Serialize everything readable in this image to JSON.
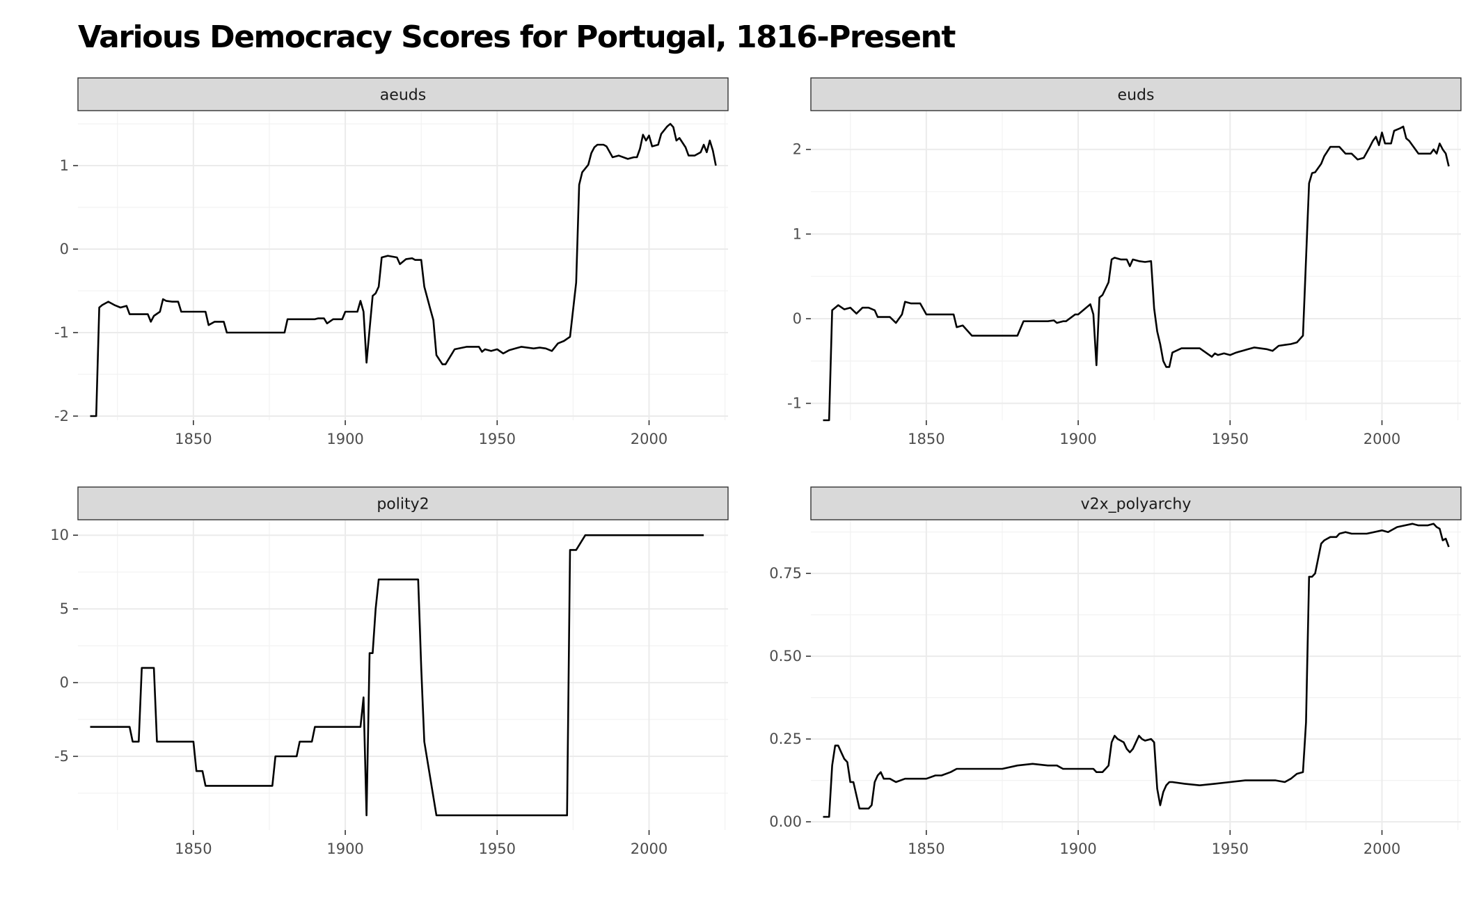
{
  "title": "Various Democracy Scores for Portugal, 1816-Present",
  "chart_data": [
    {
      "type": "line",
      "panel": "aeuds",
      "xlim": [
        1812,
        2026
      ],
      "ylim": [
        -2.05,
        1.65
      ],
      "x_ticks": [
        1850,
        1900,
        1950,
        2000
      ],
      "x_tick_labels": [
        "1850",
        "1900",
        "1950",
        "2000"
      ],
      "y_ticks": [
        -2,
        -1,
        0,
        1
      ],
      "y_tick_labels": [
        "-2",
        "-1",
        "0",
        "1"
      ],
      "grid": true,
      "series": [
        {
          "x": [
            1816,
            1818,
            1819,
            1820,
            1822,
            1824,
            1826,
            1828,
            1829,
            1831,
            1835,
            1836,
            1837,
            1839,
            1840,
            1841,
            1843,
            1845,
            1846,
            1848,
            1850,
            1853,
            1854,
            1855,
            1857,
            1858,
            1860,
            1861,
            1865,
            1870,
            1875,
            1880,
            1881,
            1885,
            1890,
            1891,
            1893,
            1894,
            1896,
            1899,
            1900,
            1904,
            1905,
            1906,
            1907,
            1909,
            1910,
            1911,
            1912,
            1914,
            1917,
            1918,
            1920,
            1922,
            1923,
            1924,
            1925,
            1926,
            1928,
            1929,
            1930,
            1932,
            1933,
            1936,
            1940,
            1944,
            1945,
            1946,
            1948,
            1950,
            1952,
            1954,
            1956,
            1958,
            1962,
            1964,
            1966,
            1968,
            1970,
            1972,
            1974,
            1976,
            1977,
            1978,
            1980,
            1981,
            1982,
            1983,
            1985,
            1986,
            1988,
            1990,
            1993,
            1995,
            1996,
            1997,
            1998,
            1999,
            2000,
            2001,
            2003,
            2004,
            2006,
            2007,
            2008,
            2009,
            2010,
            2012,
            2013,
            2015,
            2017,
            2018,
            2019,
            2020,
            2021,
            2022
          ],
          "y": [
            -2.0,
            -2.0,
            -0.7,
            -0.67,
            -0.63,
            -0.67,
            -0.7,
            -0.68,
            -0.78,
            -0.78,
            -0.78,
            -0.87,
            -0.8,
            -0.75,
            -0.6,
            -0.62,
            -0.63,
            -0.63,
            -0.75,
            -0.75,
            -0.75,
            -0.75,
            -0.75,
            -0.91,
            -0.87,
            -0.87,
            -0.87,
            -1.0,
            -1.0,
            -1.0,
            -1.0,
            -1.0,
            -0.84,
            -0.84,
            -0.84,
            -0.83,
            -0.83,
            -0.89,
            -0.84,
            -0.84,
            -0.75,
            -0.75,
            -0.62,
            -0.75,
            -1.36,
            -0.56,
            -0.53,
            -0.45,
            -0.1,
            -0.08,
            -0.1,
            -0.18,
            -0.12,
            -0.11,
            -0.13,
            -0.13,
            -0.13,
            -0.45,
            -0.72,
            -0.85,
            -1.27,
            -1.38,
            -1.38,
            -1.2,
            -1.17,
            -1.17,
            -1.23,
            -1.2,
            -1.22,
            -1.2,
            -1.25,
            -1.21,
            -1.19,
            -1.17,
            -1.19,
            -1.18,
            -1.19,
            -1.22,
            -1.13,
            -1.1,
            -1.05,
            -0.4,
            0.77,
            0.92,
            1.01,
            1.15,
            1.22,
            1.25,
            1.25,
            1.23,
            1.1,
            1.12,
            1.08,
            1.1,
            1.1,
            1.2,
            1.37,
            1.3,
            1.36,
            1.23,
            1.25,
            1.38,
            1.47,
            1.5,
            1.46,
            1.3,
            1.33,
            1.22,
            1.12,
            1.12,
            1.16,
            1.25,
            1.16,
            1.3,
            1.18,
            1.0
          ]
        }
      ]
    },
    {
      "type": "line",
      "panel": "euds",
      "xlim": [
        1812,
        2026
      ],
      "ylim": [
        -1.2,
        2.45
      ],
      "x_ticks": [
        1850,
        1900,
        1950,
        2000
      ],
      "x_tick_labels": [
        "1850",
        "1900",
        "1950",
        "2000"
      ],
      "y_ticks": [
        -1,
        0,
        1,
        2
      ],
      "y_tick_labels": [
        "-1",
        "0",
        "1",
        "2"
      ],
      "grid": true,
      "series": [
        {
          "x": [
            1816,
            1818,
            1819,
            1821,
            1823,
            1825,
            1827,
            1829,
            1831,
            1833,
            1834,
            1836,
            1838,
            1840,
            1842,
            1843,
            1845,
            1846,
            1848,
            1850,
            1853,
            1854,
            1856,
            1857,
            1859,
            1860,
            1862,
            1865,
            1870,
            1875,
            1880,
            1882,
            1885,
            1890,
            1892,
            1893,
            1895,
            1896,
            1899,
            1900,
            1904,
            1905,
            1906,
            1907,
            1908,
            1910,
            1911,
            1912,
            1914,
            1916,
            1917,
            1918,
            1920,
            1922,
            1924,
            1925,
            1926,
            1927,
            1928,
            1929,
            1930,
            1931,
            1934,
            1940,
            1944,
            1945,
            1946,
            1948,
            1950,
            1952,
            1954,
            1956,
            1958,
            1962,
            1964,
            1966,
            1968,
            1970,
            1972,
            1974,
            1976,
            1977,
            1978,
            1980,
            1981,
            1983,
            1986,
            1988,
            1990,
            1992,
            1994,
            1996,
            1997,
            1998,
            1999,
            2000,
            2001,
            2003,
            2004,
            2006,
            2007,
            2008,
            2009,
            2010,
            2012,
            2013,
            2016,
            2017,
            2018,
            2019,
            2020,
            2021,
            2022
          ],
          "y": [
            -1.2,
            -1.2,
            0.1,
            0.16,
            0.11,
            0.13,
            0.06,
            0.13,
            0.13,
            0.1,
            0.02,
            0.02,
            0.02,
            -0.05,
            0.05,
            0.2,
            0.18,
            0.18,
            0.18,
            0.05,
            0.05,
            0.05,
            0.05,
            0.05,
            0.05,
            -0.1,
            -0.08,
            -0.2,
            -0.2,
            -0.2,
            -0.2,
            -0.03,
            -0.03,
            -0.03,
            -0.02,
            -0.05,
            -0.03,
            -0.03,
            0.05,
            0.05,
            0.17,
            0.05,
            -0.55,
            0.25,
            0.28,
            0.43,
            0.7,
            0.72,
            0.7,
            0.7,
            0.62,
            0.7,
            0.68,
            0.67,
            0.68,
            0.12,
            -0.15,
            -0.3,
            -0.5,
            -0.57,
            -0.57,
            -0.4,
            -0.35,
            -0.35,
            -0.45,
            -0.41,
            -0.43,
            -0.41,
            -0.43,
            -0.4,
            -0.38,
            -0.36,
            -0.34,
            -0.36,
            -0.38,
            -0.32,
            -0.31,
            -0.3,
            -0.28,
            -0.2,
            1.6,
            1.72,
            1.73,
            1.83,
            1.92,
            2.03,
            2.03,
            1.95,
            1.95,
            1.88,
            1.9,
            2.03,
            2.1,
            2.15,
            2.05,
            2.2,
            2.07,
            2.07,
            2.22,
            2.25,
            2.27,
            2.13,
            2.1,
            2.05,
            1.95,
            1.95,
            1.95,
            2.0,
            1.95,
            2.07,
            2.0,
            1.95,
            1.8
          ]
        }
      ]
    },
    {
      "type": "line",
      "panel": "polity2",
      "xlim": [
        1812,
        2026
      ],
      "ylim": [
        -10,
        11
      ],
      "x_ticks": [
        1850,
        1900,
        1950,
        2000
      ],
      "x_tick_labels": [
        "1850",
        "1900",
        "1950",
        "2000"
      ],
      "y_ticks": [
        -5,
        0,
        5,
        10
      ],
      "y_tick_labels": [
        "-5",
        "0",
        "5",
        "10"
      ],
      "grid": true,
      "series": [
        {
          "x": [
            1816,
            1829,
            1830,
            1832,
            1833,
            1837,
            1838,
            1842,
            1843,
            1850,
            1851,
            1853,
            1854,
            1855,
            1858,
            1859,
            1860,
            1875,
            1876,
            1877,
            1878,
            1879,
            1880,
            1884,
            1885,
            1889,
            1890,
            1899,
            1900,
            1904,
            1905,
            1906,
            1907,
            1908,
            1909,
            1910,
            1911,
            1912,
            1924,
            1925,
            1926,
            1930,
            1931,
            1973,
            1974,
            1975,
            1976,
            1979,
            1980,
            2018
          ],
          "y": [
            -3,
            -3,
            -4,
            -4,
            1,
            1,
            -4,
            -4,
            -4,
            -4,
            -6,
            -6,
            -7,
            -7,
            -7,
            -7,
            -7,
            -7,
            -7,
            -5,
            -5,
            -5,
            -5,
            -5,
            -4,
            -4,
            -3,
            -3,
            -3,
            -3,
            -3,
            -1,
            -9,
            2,
            2,
            5,
            7,
            7,
            7,
            1,
            -4,
            -9,
            -9,
            -9,
            9,
            9,
            9,
            10,
            10,
            10
          ]
        }
      ]
    },
    {
      "type": "line",
      "panel": "v2x_polyarchy",
      "xlim": [
        1812,
        2026
      ],
      "ylim": [
        -0.025,
        0.91
      ],
      "x_ticks": [
        1850,
        1900,
        1950,
        2000
      ],
      "x_tick_labels": [
        "1850",
        "1900",
        "1950",
        "2000"
      ],
      "y_ticks": [
        0.0,
        0.25,
        0.5,
        0.75
      ],
      "y_tick_labels": [
        "0.00",
        "0.25",
        "0.50",
        "0.75"
      ],
      "grid": true,
      "series": [
        {
          "x": [
            1816,
            1818,
            1819,
            1820,
            1821,
            1822,
            1823,
            1824,
            1825,
            1826,
            1828,
            1831,
            1832,
            1833,
            1834,
            1835,
            1836,
            1838,
            1840,
            1843,
            1846,
            1850,
            1853,
            1855,
            1858,
            1860,
            1865,
            1870,
            1875,
            1880,
            1885,
            1890,
            1893,
            1895,
            1900,
            1905,
            1906,
            1908,
            1909,
            1910,
            1911,
            1912,
            1913,
            1914,
            1915,
            1916,
            1917,
            1918,
            1920,
            1921,
            1922,
            1924,
            1925,
            1926,
            1927,
            1928,
            1929,
            1930,
            1931,
            1935,
            1940,
            1945,
            1950,
            1955,
            1960,
            1965,
            1968,
            1970,
            1972,
            1974,
            1975,
            1976,
            1977,
            1978,
            1980,
            1981,
            1983,
            1985,
            1986,
            1988,
            1990,
            1995,
            2000,
            2002,
            2005,
            2010,
            2012,
            2015,
            2017,
            2018,
            2019,
            2020,
            2021,
            2022
          ],
          "y": [
            0.015,
            0.015,
            0.17,
            0.23,
            0.23,
            0.21,
            0.19,
            0.18,
            0.12,
            0.12,
            0.04,
            0.04,
            0.05,
            0.12,
            0.14,
            0.15,
            0.13,
            0.13,
            0.12,
            0.13,
            0.13,
            0.13,
            0.14,
            0.14,
            0.15,
            0.16,
            0.16,
            0.16,
            0.16,
            0.17,
            0.175,
            0.17,
            0.17,
            0.16,
            0.16,
            0.16,
            0.15,
            0.15,
            0.16,
            0.17,
            0.24,
            0.26,
            0.25,
            0.245,
            0.24,
            0.22,
            0.21,
            0.22,
            0.26,
            0.25,
            0.245,
            0.25,
            0.24,
            0.1,
            0.05,
            0.09,
            0.11,
            0.12,
            0.12,
            0.115,
            0.11,
            0.115,
            0.12,
            0.125,
            0.125,
            0.125,
            0.12,
            0.13,
            0.145,
            0.15,
            0.3,
            0.74,
            0.74,
            0.75,
            0.84,
            0.85,
            0.86,
            0.86,
            0.87,
            0.875,
            0.87,
            0.87,
            0.88,
            0.875,
            0.89,
            0.9,
            0.895,
            0.895,
            0.9,
            0.89,
            0.885,
            0.85,
            0.855,
            0.83
          ]
        }
      ]
    }
  ]
}
